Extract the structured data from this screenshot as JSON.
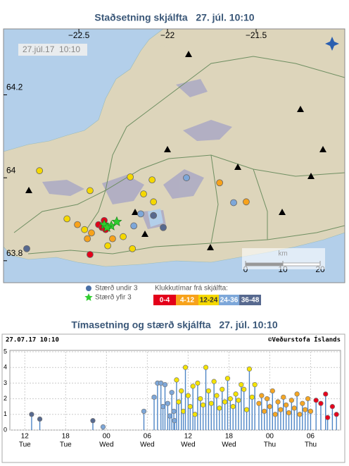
{
  "map": {
    "title": "Staðsetning skjálfta   27. júl. 10:10",
    "timestamp": "27.júl.17  10:10",
    "xlim": [
      -22.925,
      -21.0
    ],
    "ylim": [
      63.747,
      64.359
    ],
    "xticks": [
      {
        "value": -22.5,
        "label": "−22.5"
      },
      {
        "value": -22,
        "label": "−22"
      },
      {
        "value": -21.5,
        "label": "−21.5"
      }
    ],
    "yticks": [
      63.8,
      64,
      64.2
    ],
    "scale": {
      "unit": "km",
      "ticks": [
        0,
        10,
        20
      ]
    },
    "small": {
      "name": "Stærð undir 3",
      "color": "#4a6fa5"
    },
    "large": {
      "name": "Stærð yfir 3",
      "color": "#2ecc2e",
      "lon": [
        -22.357,
        -22.317,
        -22.286,
        -22.341
      ],
      "lat": [
        63.887,
        63.884,
        63.894,
        63.88
      ]
    },
    "legend_title": "Klukkutímar frá skjálfta:",
    "series": [
      {
        "name": "0-4",
        "color": "#e3001a",
        "text_color": "#ffffff",
        "lon": [
          -22.389,
          -22.369,
          -22.357,
          -22.437,
          -22.349
        ],
        "lat": [
          63.887,
          63.88,
          63.897,
          63.815,
          63.875
        ]
      },
      {
        "name": "4-12",
        "color": "#f7a21b",
        "text_color": "#ffffff",
        "lon": [
          -22.508,
          -22.429,
          -22.31,
          -22.452,
          -21.706,
          -21.556
        ],
        "lat": [
          63.887,
          63.867,
          63.853,
          63.853,
          63.988,
          63.942
        ]
      },
      {
        "name": "12-24",
        "color": "#f5d800",
        "text_color": "#333333",
        "lon": [
          -22.722,
          -22.437,
          -22.21,
          -22.135,
          -22.087,
          -22.079,
          -22.567,
          -22.468,
          -22.198,
          -22.337,
          -22.25
        ],
        "lat": [
          64.017,
          63.969,
          64.002,
          63.961,
          63.995,
          63.942,
          63.901,
          63.875,
          63.829,
          63.836,
          63.858
        ]
      },
      {
        "name": "24-36",
        "color": "#7da7d9",
        "text_color": "#ffffff",
        "lon": [
          -21.893,
          -22.151,
          -22.19,
          -21.627
        ],
        "lat": [
          64.0,
          63.913,
          63.884,
          63.94
        ]
      },
      {
        "name": "36-48",
        "color": "#57698f",
        "text_color": "#ffffff",
        "lon": [
          -22.794,
          -22.079,
          -22.024
        ],
        "lat": [
          63.829,
          63.909,
          63.88
        ]
      }
    ]
  },
  "chart_data": {
    "type": "stem",
    "title": "Tímasetning og stærð skjálfta   27. júl. 10:10",
    "timestamp": "27.07.17 10:10",
    "credit": "©Veðurstofa Íslands",
    "xlim": [
      9.8,
      58.4
    ],
    "xticks": [
      12,
      18,
      {
        "value": 24,
        "label": "00"
      },
      {
        "value": 30,
        "label": "06"
      },
      {
        "value": 36,
        "label": "12"
      },
      {
        "value": 42,
        "label": "18"
      },
      {
        "value": 48,
        "label": "00"
      },
      {
        "value": 54,
        "label": "06"
      }
    ],
    "xtick_days": [
      "Tue",
      "Tue",
      "Wed",
      "Wed",
      "Wed",
      "Wed",
      "Thu",
      "Thu"
    ],
    "ylim": [
      0,
      5
    ],
    "yticks": [
      0,
      1,
      2,
      3,
      4,
      5
    ],
    "grid": true,
    "series": [
      {
        "color": "#57698f",
        "x": [
          13.0,
          14.2,
          22.0
        ],
        "values": [
          1.0,
          0.7,
          0.6
        ]
      },
      {
        "color": "#7da7d9",
        "x": [
          23.5,
          29.5,
          31.0,
          31.5,
          32.0,
          32.3,
          32.6,
          33.0,
          33.3,
          33.6,
          33.9,
          34.0
        ],
        "values": [
          0.2,
          1.2,
          2.1,
          3.0,
          3.0,
          1.5,
          2.9,
          1.7,
          0.9,
          2.4,
          1.2,
          0.6
        ]
      },
      {
        "color": "#f5e400",
        "x": [
          34.3,
          34.6,
          35.0,
          35.3,
          35.6,
          36.0,
          36.3,
          36.7,
          37.0,
          37.4,
          37.8,
          38.2,
          38.6,
          39.0,
          39.4,
          39.8,
          40.2,
          40.6,
          41.0,
          41.4,
          41.8,
          42.2,
          42.6,
          43.0,
          43.4,
          43.8,
          44.2,
          44.6,
          45.0,
          45.4,
          45.8
        ],
        "values": [
          3.2,
          1.8,
          2.5,
          1.2,
          4.0,
          2.2,
          1.5,
          2.8,
          1.0,
          3.0,
          2.0,
          1.6,
          4.0,
          2.5,
          1.7,
          3.1,
          2.2,
          1.4,
          2.6,
          1.8,
          3.3,
          2.0,
          1.5,
          2.3,
          1.9,
          2.9,
          2.6,
          1.3,
          3.9,
          2.1,
          2.9
        ]
      },
      {
        "color": "#f5a623",
        "x": [
          46.4,
          46.8,
          47.2,
          47.6,
          48.0,
          48.4,
          48.8,
          49.2,
          49.6,
          50.0,
          50.4,
          50.8,
          51.2,
          51.6,
          52.0,
          52.4,
          52.8,
          53.2,
          53.6,
          54.0
        ],
        "values": [
          1.7,
          2.2,
          1.2,
          2.0,
          1.5,
          2.5,
          1.0,
          1.8,
          1.3,
          2.1,
          1.6,
          1.1,
          1.9,
          1.4,
          2.3,
          1.0,
          1.7,
          1.3,
          2.0,
          1.2
        ]
      },
      {
        "color": "#e8001c",
        "x": [
          54.8,
          55.5,
          56.2,
          56.5,
          57.2,
          57.8
        ],
        "values": [
          1.9,
          1.7,
          2.3,
          0.8,
          1.5,
          1.0
        ]
      }
    ]
  }
}
